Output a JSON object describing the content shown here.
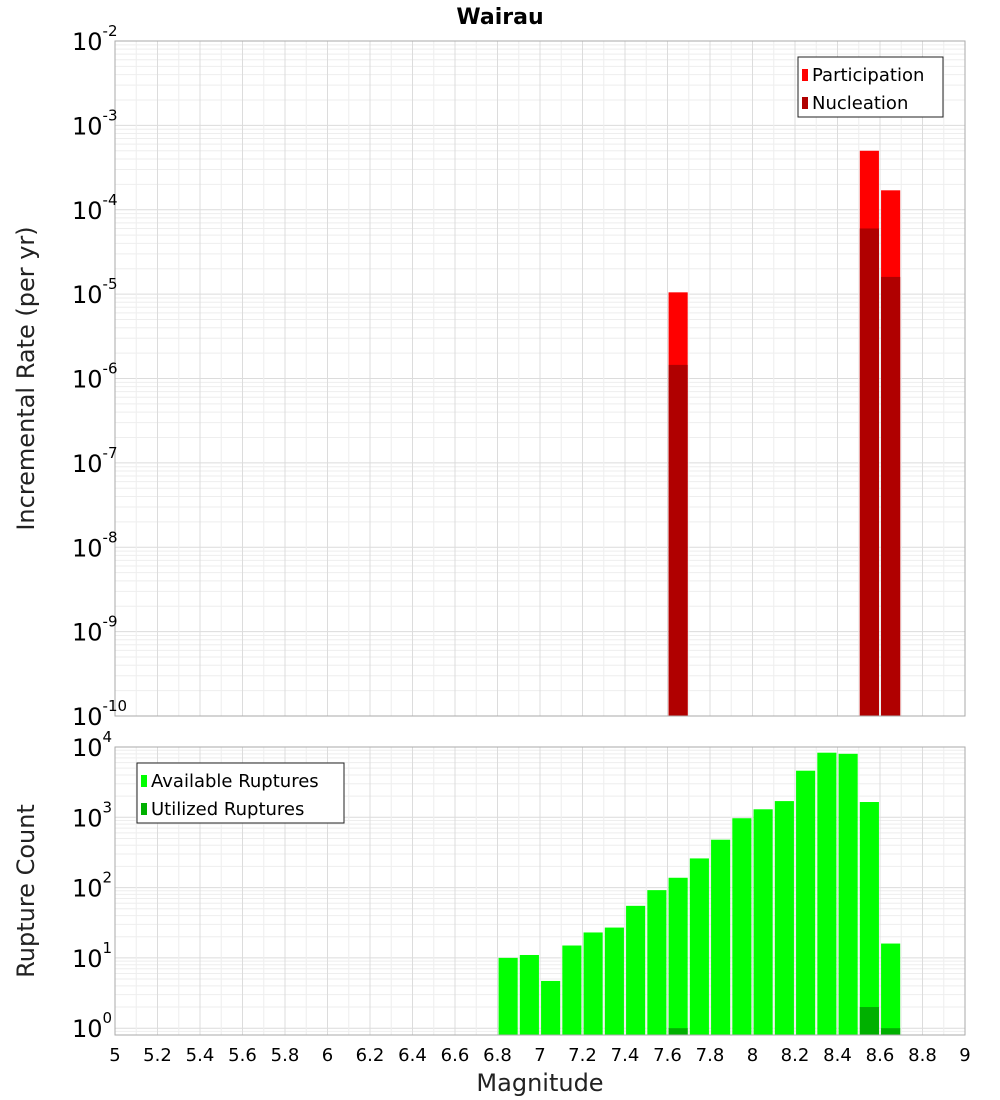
{
  "chart_data": [
    {
      "type": "bar",
      "title": "Wairau",
      "ylabel": "Incremental Rate (per yr)",
      "xlabel": "",
      "yscale": "log",
      "xlim": [
        5,
        9
      ],
      "ylim": [
        1e-10,
        0.01
      ],
      "ytick_exponents": [
        -10,
        -9,
        -8,
        -7,
        -6,
        -5,
        -4,
        -3,
        -2
      ],
      "legend_position": "top-right",
      "grid": true,
      "bar_width": 0.09,
      "series": [
        {
          "name": "Participation",
          "color": "#ff0000",
          "x": [
            7.65,
            8.55,
            8.65
          ],
          "values": [
            1.05e-05,
            0.0005,
            0.00017
          ]
        },
        {
          "name": "Nucleation",
          "color": "#b00000",
          "x": [
            7.65,
            8.55,
            8.65
          ],
          "values": [
            1.45e-06,
            6e-05,
            1.6e-05
          ]
        }
      ]
    },
    {
      "type": "bar",
      "title": "",
      "ylabel": "Rupture Count",
      "xlabel": "Magnitude",
      "yscale": "log",
      "xlim": [
        5,
        9
      ],
      "ylim": [
        0.8,
        10000
      ],
      "ytick_exponents": [
        0,
        1,
        2,
        3,
        4
      ],
      "xticks": [
        5,
        5.2,
        5.4,
        5.6,
        5.8,
        6,
        6.2,
        6.4,
        6.6,
        6.8,
        7,
        7.2,
        7.4,
        7.6,
        7.8,
        8,
        8.2,
        8.4,
        8.6,
        8.8,
        9
      ],
      "legend_position": "top-left",
      "grid": true,
      "bar_width": 0.09,
      "series": [
        {
          "name": "Available Ruptures",
          "color": "#00ff00",
          "x": [
            6.85,
            6.95,
            7.05,
            7.15,
            7.25,
            7.35,
            7.45,
            7.55,
            7.65,
            7.75,
            7.85,
            7.95,
            8.05,
            8.15,
            8.25,
            8.35,
            8.45,
            8.55,
            8.65
          ],
          "values": [
            10,
            11,
            4.7,
            15,
            23,
            27,
            55,
            92,
            138,
            260,
            480,
            970,
            1300,
            1700,
            4600,
            8300,
            8000,
            1650,
            16
          ]
        },
        {
          "name": "Utilized Ruptures",
          "color": "#00b000",
          "x": [
            7.65,
            8.55,
            8.65
          ],
          "values": [
            1,
            2,
            1
          ]
        }
      ]
    }
  ]
}
